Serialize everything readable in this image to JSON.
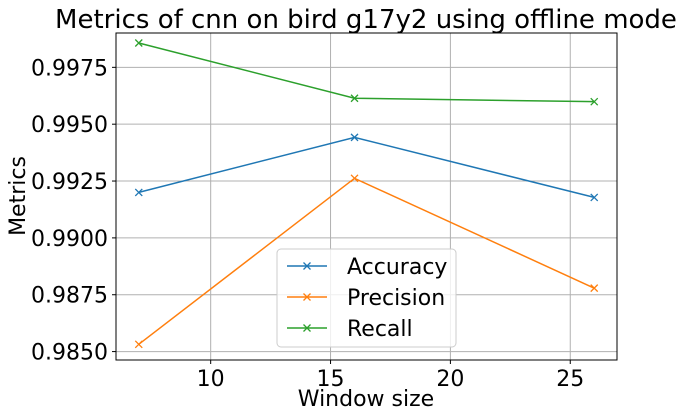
{
  "chart_data": {
    "type": "line",
    "title": "Metrics of cnn on bird g17y2 using offline mode",
    "xlabel": "Window size",
    "ylabel": "Metrics",
    "x": [
      7,
      16,
      26
    ],
    "xlim": [
      6.05,
      26.95
    ],
    "ylim": [
      0.98463,
      0.99901
    ],
    "xticks": [
      10,
      15,
      20,
      25
    ],
    "xtick_labels": [
      "10",
      "15",
      "20",
      "25"
    ],
    "yticks": [
      0.985,
      0.9875,
      0.99,
      0.9925,
      0.995,
      0.9975
    ],
    "ytick_labels": [
      "0.9850",
      "0.9875",
      "0.9900",
      "0.9925",
      "0.9950",
      "0.9975"
    ],
    "grid": true,
    "legend_position": "lower center",
    "marker": "x",
    "series": [
      {
        "name": "Accuracy",
        "color": "#1f77b4",
        "values": [
          0.992,
          0.99442,
          0.99178
        ]
      },
      {
        "name": "Precision",
        "color": "#ff7f0e",
        "values": [
          0.98532,
          0.99262,
          0.98779
        ]
      },
      {
        "name": "Recall",
        "color": "#2ca02c",
        "values": [
          0.99857,
          0.99614,
          0.99599
        ]
      }
    ]
  }
}
